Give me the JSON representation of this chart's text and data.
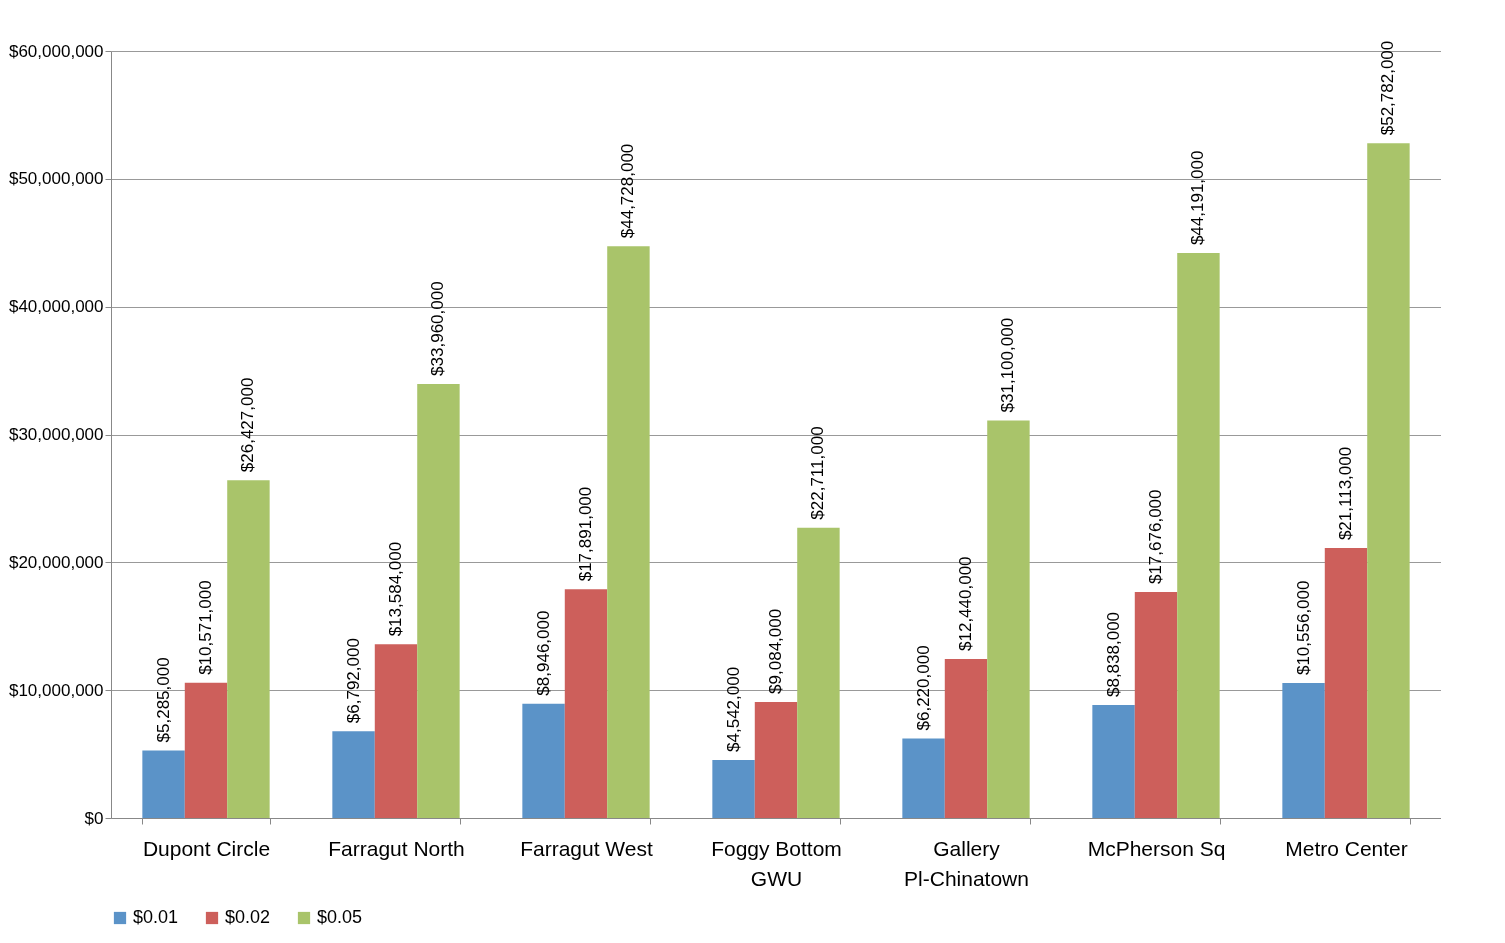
{
  "chart_data": {
    "type": "bar",
    "categories": [
      "Dupont Circle",
      "Farragut North",
      "Farragut West",
      "Foggy Bottom GWU",
      "Gallery Pl-Chinatown",
      "McPherson Sq",
      "Metro Center"
    ],
    "series": [
      {
        "name": "$0.01",
        "color": "#5b93c8",
        "values": [
          5285000,
          6792000,
          8946000,
          4542000,
          6220000,
          8838000,
          10556000
        ],
        "value_labels": [
          "$5,285,000",
          "$6,792,000",
          "$8,946,000",
          "$4,542,000",
          "$6,220,000",
          "$8,838,000",
          "$10,556,000"
        ]
      },
      {
        "name": "$0.02",
        "color": "#cd5f5b",
        "values": [
          10571000,
          13584000,
          17891000,
          9084000,
          12440000,
          17676000,
          21113000
        ],
        "value_labels": [
          "$10,571,000",
          "$13,584,000",
          "$17,891,000",
          "$9,084,000",
          "$12,440,000",
          "$17,676,000",
          "$21,113,000"
        ]
      },
      {
        "name": "$0.05",
        "color": "#a9c46a",
        "values": [
          26427000,
          33960000,
          44728000,
          22711000,
          31100000,
          44191000,
          52782000
        ],
        "value_labels": [
          "$26,427,000",
          "$33,960,000",
          "$44,728,000",
          "$22,711,000",
          "$31,100,000",
          "$44,191,000",
          "$52,782,000"
        ]
      }
    ],
    "ylim": [
      0,
      60000000
    ],
    "yticks": [
      {
        "value": 0,
        "label": "$0"
      },
      {
        "value": 10000000,
        "label": "$10,000,000"
      },
      {
        "value": 20000000,
        "label": "$20,000,000"
      },
      {
        "value": 30000000,
        "label": "$30,000,000"
      },
      {
        "value": 40000000,
        "label": "$40,000,000"
      },
      {
        "value": 50000000,
        "label": "$50,000,000"
      },
      {
        "value": 60000000,
        "label": "$60,000,000"
      }
    ],
    "grid": "y",
    "legend": "bottom"
  }
}
